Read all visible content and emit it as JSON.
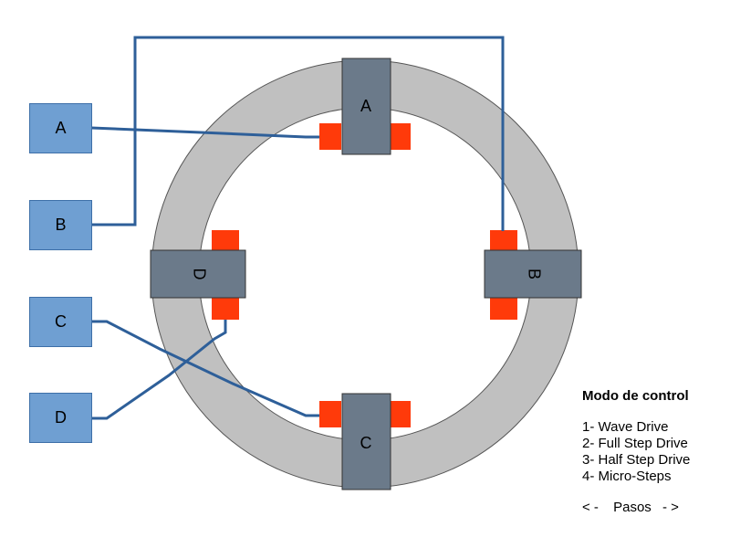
{
  "colors": {
    "coil_fill": "#6f9fd2",
    "wire": "#2e5f99",
    "ring": "#c0c0c0",
    "pole": "#6b7a8a",
    "tooth": "#ff3a0a"
  },
  "coils": [
    {
      "id": "A",
      "label": "A"
    },
    {
      "id": "B",
      "label": "B"
    },
    {
      "id": "C",
      "label": "C"
    },
    {
      "id": "D",
      "label": "D"
    }
  ],
  "poles": {
    "top": "A",
    "right": "B",
    "bottom": "C",
    "left": "D"
  },
  "control_panel": {
    "title": "Modo de control",
    "modes": [
      "1- Wave Drive",
      "2- Full Step Drive",
      "3- Half Step Drive",
      "4- Micro-Steps"
    ],
    "prev": "< -",
    "steps_label": "Pasos",
    "next": "- >"
  }
}
